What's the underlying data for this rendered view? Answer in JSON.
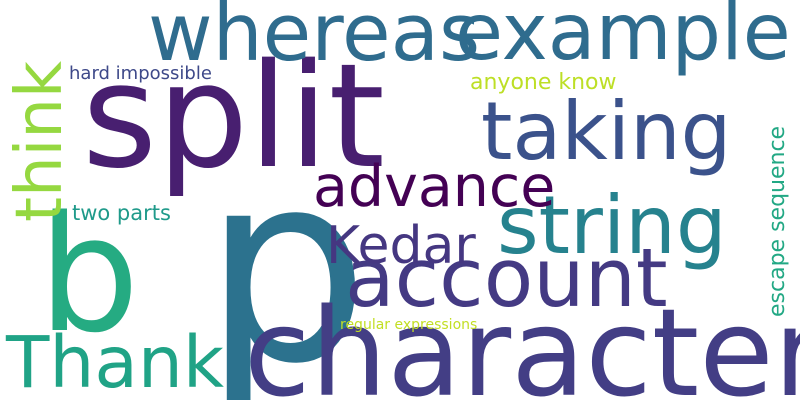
{
  "word_cloud": {
    "words": [
      {
        "text": "p",
        "color": "#2c728e"
      },
      {
        "text": "split",
        "color": "#481f70"
      },
      {
        "text": "character",
        "color": "#433e85"
      },
      {
        "text": "whereas",
        "color": "#2f6c8e"
      },
      {
        "text": "example",
        "color": "#2f6c8e"
      },
      {
        "text": "b",
        "color": "#25ab82"
      },
      {
        "text": "taking",
        "color": "#3b528b"
      },
      {
        "text": "account",
        "color": "#443a83"
      },
      {
        "text": "string",
        "color": "#26828e"
      },
      {
        "text": "Thank",
        "color": "#20a386"
      },
      {
        "text": "advance",
        "color": "#440154"
      },
      {
        "text": "think",
        "color": "#95d840"
      },
      {
        "text": "Kedar",
        "color": "#453781"
      },
      {
        "text": "hard impossible",
        "color": "#3e4989"
      },
      {
        "text": "anyone know",
        "color": "#bddf26"
      },
      {
        "text": "two parts",
        "color": "#1f9a8a"
      },
      {
        "text": "escape sequence",
        "color": "#22a884"
      },
      {
        "text": "regular expressions",
        "color": "#c2df23"
      }
    ]
  }
}
